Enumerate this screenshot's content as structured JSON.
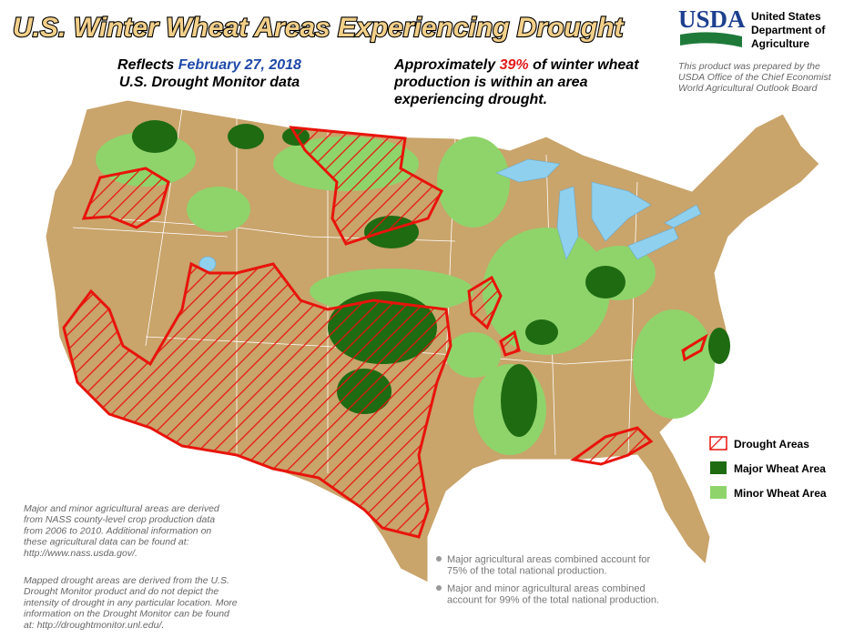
{
  "title": "U.S. Winter Wheat Areas Experiencing Drought",
  "reflects": {
    "prefix": "Reflects ",
    "date": "February 27, 2018",
    "line2": "U.S. Drought Monitor data"
  },
  "summary": {
    "prefix": "Approximately ",
    "percent": "39%",
    "suffix": " of winter wheat",
    "line2": "production is within an area",
    "line3": "experiencing drought."
  },
  "agency": {
    "logo": "USDA",
    "name_lines": [
      "United States",
      "Department of",
      "Agriculture"
    ],
    "note_lines": [
      "This product was prepared by the",
      "USDA Office of the Chief Economist",
      "World Agricultural Outlook Board"
    ]
  },
  "legend": {
    "items": [
      {
        "label": "Drought Areas"
      },
      {
        "label": "Major Wheat Area"
      },
      {
        "label": "Minor Wheat Area"
      }
    ]
  },
  "notes": {
    "crop_lines": [
      "Major and minor agricultural areas are derived",
      "from NASS county-level crop production data",
      "from 2006 to 2010.  Additional information on",
      "these agricultural data can be found at:",
      "http://www.nass.usda.gov/."
    ],
    "drought_lines": [
      "Mapped drought areas are derived from the U.S.",
      "Drought Monitor product and do not depict the",
      "intensity of drought in any particular location.  More",
      "information on the Drought Monitor can be found",
      "at:  http://droughtmonitor.unl.edu/."
    ]
  },
  "bullets": [
    [
      "Major agricultural areas combined account for",
      "75% of the total national production."
    ],
    [
      "Major and minor agricultural areas combined",
      "account for 99% of the total national production."
    ]
  ]
}
